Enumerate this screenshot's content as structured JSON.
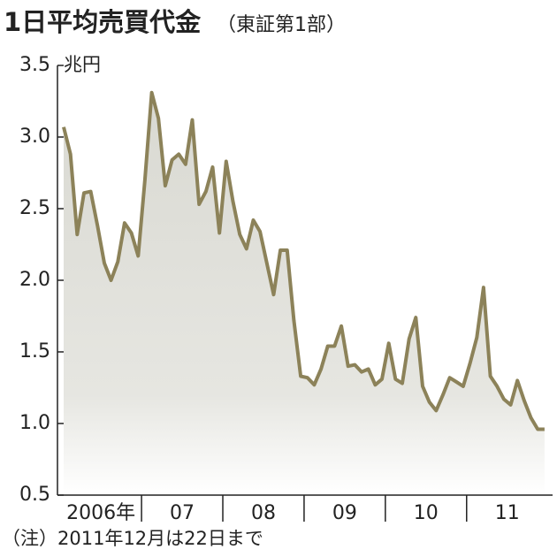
{
  "chart_data": {
    "type": "area",
    "title": "1日平均売買代金",
    "subtitle": "（東証第1部）",
    "y_unit": "兆円",
    "note": "（注）2011年12月は22日まで",
    "categories": [
      "2006年",
      null,
      null,
      null,
      null,
      null,
      null,
      null,
      null,
      null,
      null,
      null,
      "07",
      null,
      null,
      null,
      null,
      null,
      null,
      null,
      null,
      null,
      null,
      null,
      "08",
      null,
      null,
      null,
      null,
      null,
      null,
      null,
      null,
      null,
      null,
      null,
      "09",
      null,
      null,
      null,
      null,
      null,
      null,
      null,
      null,
      null,
      null,
      null,
      "10",
      null,
      null,
      null,
      null,
      null,
      null,
      null,
      null,
      null,
      null,
      null,
      "11",
      null,
      null,
      null,
      null,
      null,
      null,
      null,
      null,
      null,
      null,
      null
    ],
    "values": [
      3.07,
      2.88,
      2.32,
      2.61,
      2.62,
      2.38,
      2.12,
      2.0,
      2.13,
      2.4,
      2.33,
      2.17,
      2.7,
      3.31,
      3.13,
      2.66,
      2.84,
      2.88,
      2.81,
      3.12,
      2.53,
      2.62,
      2.79,
      2.33,
      2.83,
      2.55,
      2.32,
      2.22,
      2.42,
      2.34,
      2.12,
      1.9,
      2.21,
      2.21,
      1.72,
      1.33,
      1.32,
      1.27,
      1.38,
      1.54,
      1.54,
      1.68,
      1.4,
      1.41,
      1.36,
      1.38,
      1.27,
      1.31,
      1.56,
      1.31,
      1.28,
      1.59,
      1.74,
      1.26,
      1.15,
      1.09,
      1.2,
      1.32,
      1.29,
      1.26,
      1.42,
      1.6,
      1.95,
      1.33,
      1.26,
      1.17,
      1.13,
      1.3,
      1.16,
      1.04,
      0.96,
      0.96
    ],
    "color": "#8c8259",
    "ylim": [
      0.5,
      3.5
    ],
    "yticks": [
      0.5,
      {
        "value": 1,
        "label": "1.0"
      },
      1.5,
      {
        "value": 2,
        "label": "2.0"
      },
      2.5,
      {
        "value": 3,
        "label": "3.0"
      },
      3.5
    ],
    "grid": false
  }
}
